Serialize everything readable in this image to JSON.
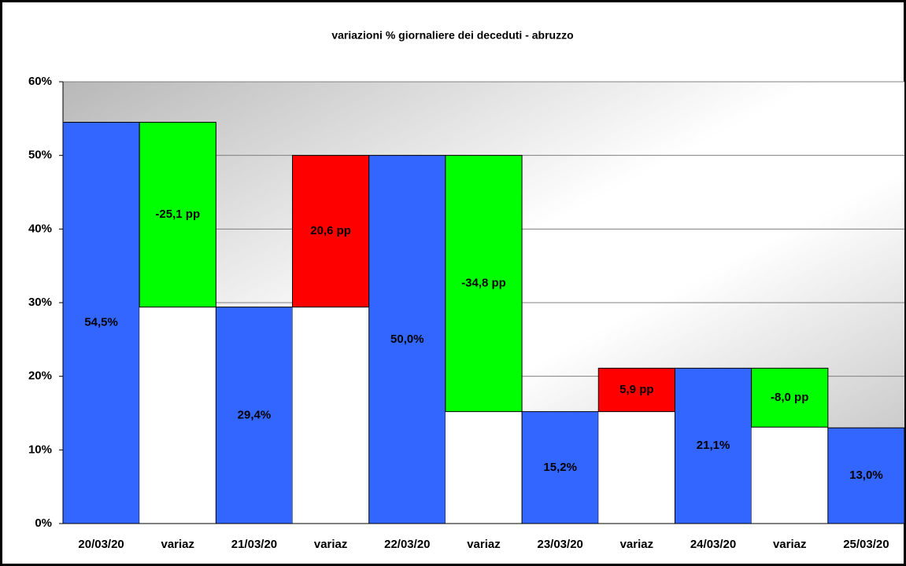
{
  "chart_data": {
    "type": "waterfall",
    "title": "variazioni % giornaliere dei deceduti - abruzzo",
    "categories": [
      "20/03/20",
      "variaz",
      "21/03/20",
      "variaz",
      "22/03/20",
      "variaz",
      "23/03/20",
      "variaz",
      "24/03/20",
      "variaz",
      "25/03/20"
    ],
    "series": [
      {
        "color": "#3366ff",
        "values": [
          54.5,
          null,
          29.4,
          null,
          50.0,
          null,
          15.2,
          null,
          21.1,
          null,
          13.0
        ],
        "value_labels": [
          "54,5%",
          null,
          "29,4%",
          null,
          "50,0%",
          null,
          "15,2%",
          null,
          "21,1%",
          null,
          "13,0%"
        ]
      },
      {
        "increase_color": "#ff0000",
        "decrease_color": "#00ff00",
        "values": [
          null,
          -25.1,
          null,
          20.6,
          null,
          -34.8,
          null,
          5.9,
          null,
          -8.0,
          null
        ],
        "value_labels": [
          null,
          "-25,1 pp",
          null,
          "20,6 pp",
          null,
          "-34,8 pp",
          null,
          "5,9 pp",
          null,
          "-8,0 pp",
          null
        ]
      }
    ],
    "ylim": [
      0,
      60
    ],
    "yticks": [
      {
        "value": 0,
        "label": "0%"
      },
      {
        "value": 10,
        "label": "10%"
      },
      {
        "value": 20,
        "label": "20%"
      },
      {
        "value": 30,
        "label": "30%"
      },
      {
        "value": 40,
        "label": "40%"
      },
      {
        "value": 50,
        "label": "50%"
      },
      {
        "value": 60,
        "label": "60%"
      }
    ],
    "grid": true
  }
}
